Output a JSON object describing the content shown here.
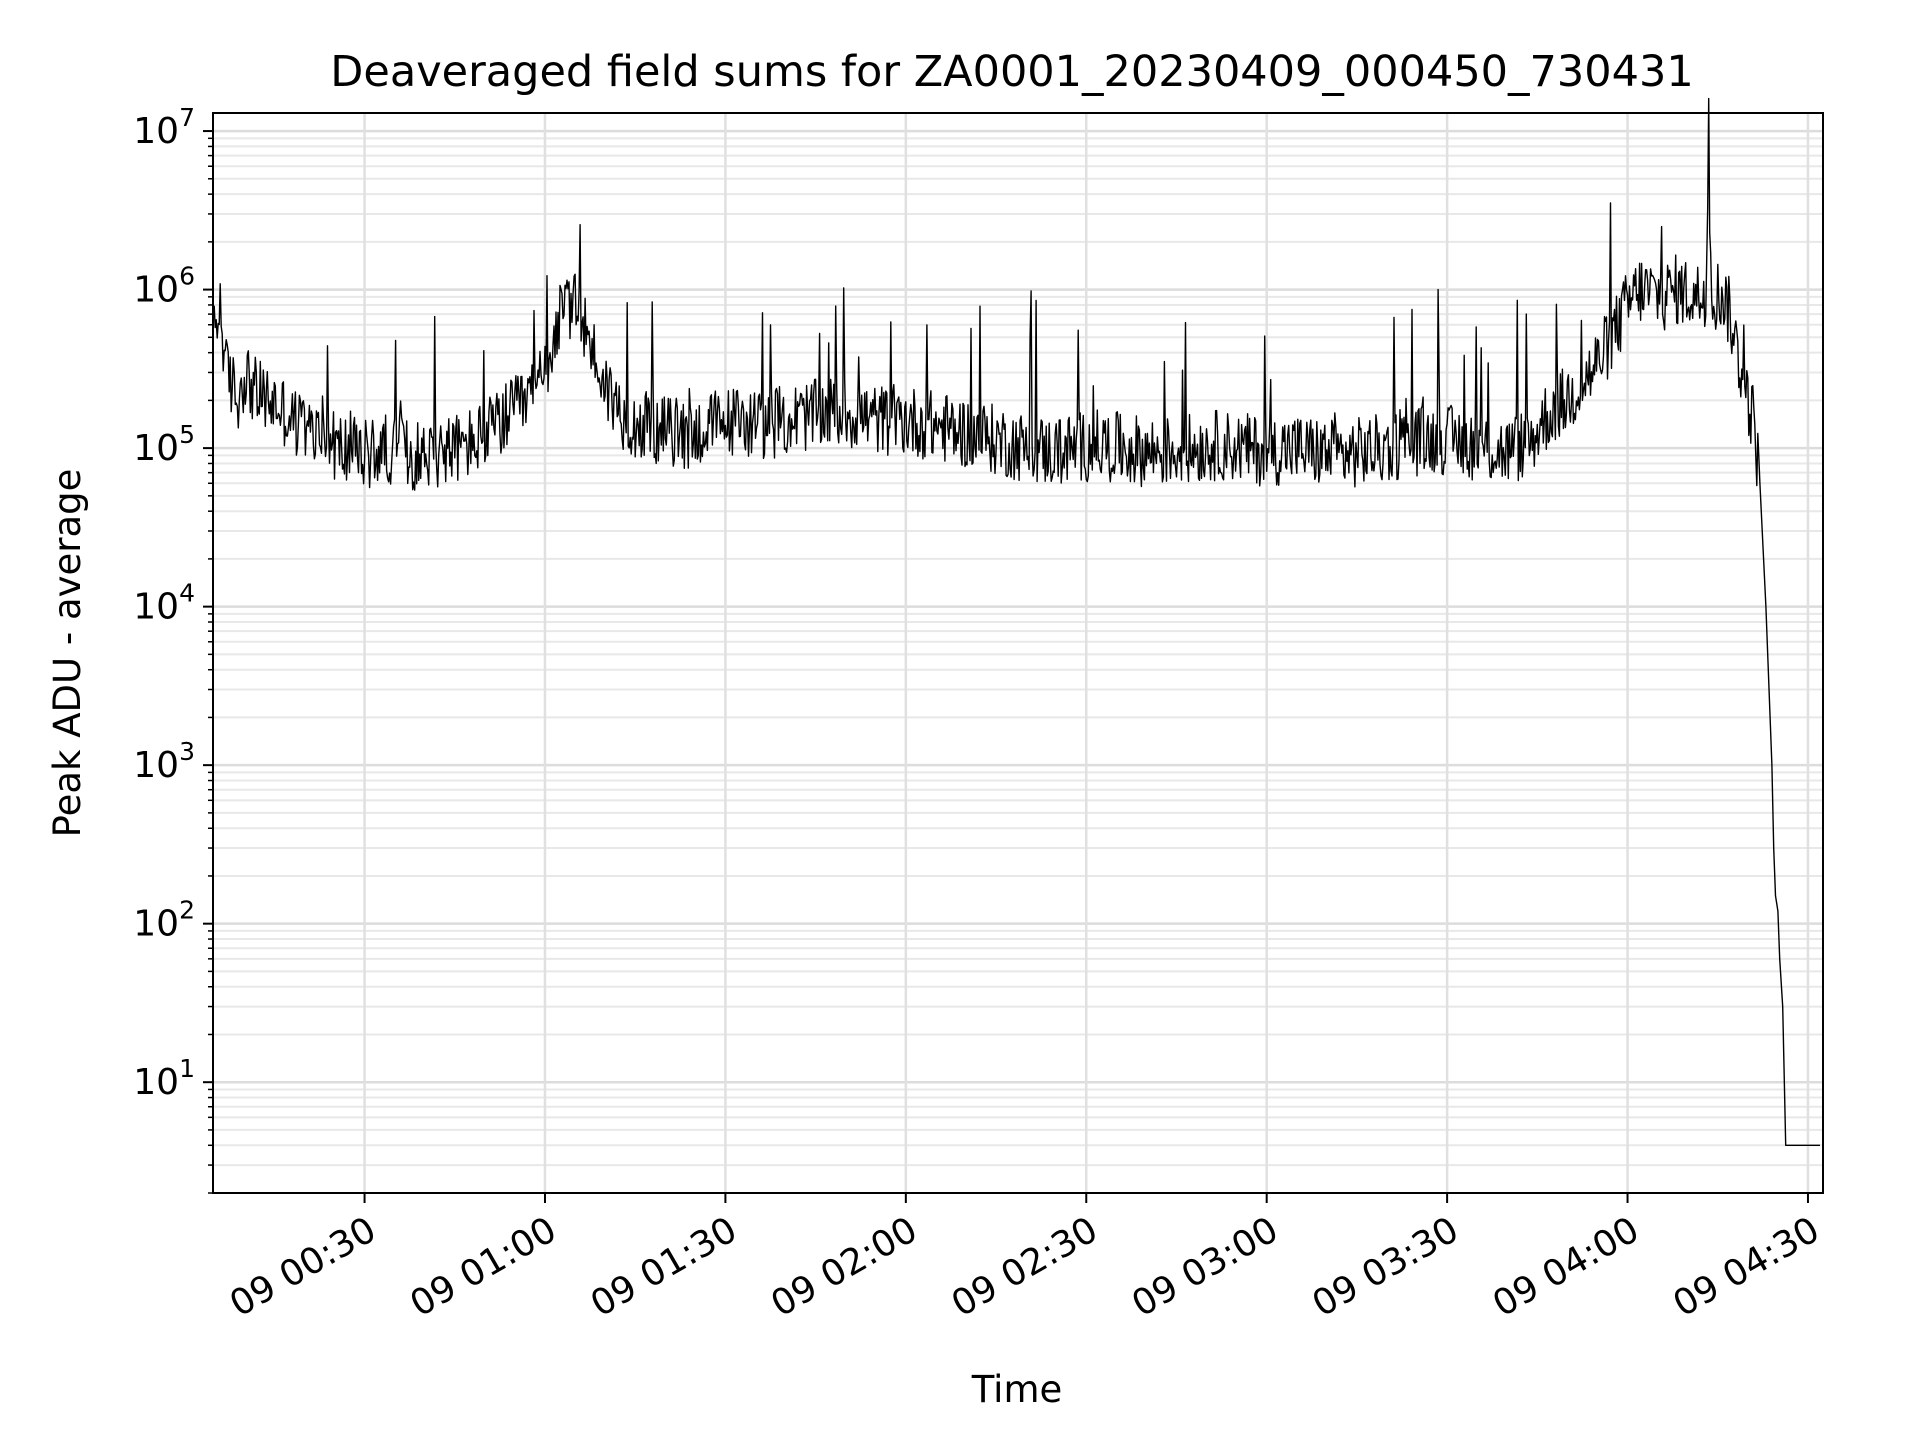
{
  "chart_data": {
    "type": "line",
    "title": "Deaveraged field sums for ZA0001_20230409_000450_730431",
    "xlabel": "Time",
    "ylabel": "Peak ADU - average",
    "yscale": "log",
    "ylim": [
      2,
      13000000
    ],
    "xlim_minutes": [
      4.8,
      272.5
    ],
    "grid": true,
    "line_color": "#000000",
    "y_ticks": [
      {
        "value": 10,
        "base": "10",
        "exp": "1"
      },
      {
        "value": 100,
        "base": "10",
        "exp": "2"
      },
      {
        "value": 1000,
        "base": "10",
        "exp": "3"
      },
      {
        "value": 10000,
        "base": "10",
        "exp": "4"
      },
      {
        "value": 100000,
        "base": "10",
        "exp": "5"
      },
      {
        "value": 1000000,
        "base": "10",
        "exp": "6"
      },
      {
        "value": 10000000,
        "base": "10",
        "exp": "7"
      }
    ],
    "x_ticks": [
      {
        "minutes": 30,
        "label": "09 00:30"
      },
      {
        "minutes": 60,
        "label": "09 01:00"
      },
      {
        "minutes": 90,
        "label": "09 01:30"
      },
      {
        "minutes": 120,
        "label": "09 02:00"
      },
      {
        "minutes": 150,
        "label": "09 02:30"
      },
      {
        "minutes": 180,
        "label": "09 03:00"
      },
      {
        "minutes": 210,
        "label": "09 03:30"
      },
      {
        "minutes": 240,
        "label": "09 04:00"
      },
      {
        "minutes": 270,
        "label": "09 04:30"
      }
    ],
    "series": [
      {
        "x_minutes": [
          5,
          6,
          7,
          8,
          9,
          10,
          12,
          14,
          16,
          18,
          20,
          22,
          24,
          26,
          28,
          30,
          32,
          34,
          36,
          38,
          40,
          42,
          44,
          46,
          48,
          50,
          52,
          54,
          56,
          58,
          60,
          62,
          64,
          66,
          68,
          70,
          72,
          74,
          76,
          78,
          80,
          84,
          88,
          92,
          96,
          100,
          104,
          108,
          112,
          116,
          120,
          124,
          128,
          132,
          136,
          140,
          144,
          148,
          152,
          156,
          160,
          164,
          168,
          172,
          176,
          180,
          184,
          188,
          192,
          196,
          200,
          204,
          208,
          212,
          216,
          220,
          224,
          226,
          228,
          230,
          232,
          234,
          236,
          238,
          240,
          242,
          244,
          246,
          248,
          250,
          252,
          253,
          253.5,
          254,
          254.5,
          255,
          256,
          257,
          258,
          259,
          260,
          261,
          262,
          263,
          264,
          264.3,
          264.6,
          265,
          265.3,
          265.8,
          266.3,
          267,
          268,
          269,
          270,
          271,
          272
        ],
        "y": [
          500000,
          800000,
          300000,
          250000,
          200000,
          300000,
          220000,
          200000,
          180000,
          150000,
          130000,
          120000,
          110000,
          100000,
          95000,
          90000,
          95000,
          100000,
          95000,
          90000,
          90000,
          95000,
          100000,
          100000,
          110000,
          120000,
          140000,
          160000,
          180000,
          220000,
          300000,
          600000,
          800000,
          700000,
          400000,
          250000,
          180000,
          150000,
          140000,
          130000,
          130000,
          120000,
          140000,
          150000,
          140000,
          150000,
          160000,
          170000,
          160000,
          150000,
          150000,
          140000,
          130000,
          120000,
          110000,
          100000,
          95000,
          100000,
          105000,
          100000,
          95000,
          95000,
          100000,
          105000,
          100000,
          95000,
          100000,
          95000,
          90000,
          95000,
          100000,
          110000,
          115000,
          110000,
          100000,
          95000,
          110000,
          150000,
          180000,
          200000,
          250000,
          300000,
          400000,
          550000,
          800000,
          1000000,
          950000,
          900000,
          1000000,
          950000,
          900000,
          1000000,
          6500000,
          1000000,
          900000,
          950000,
          900000,
          700000,
          450000,
          300000,
          200000,
          150000,
          60000,
          10000,
          1000,
          300,
          150,
          120,
          60,
          30,
          4,
          4,
          4,
          4,
          4,
          4,
          4
        ]
      }
    ]
  }
}
